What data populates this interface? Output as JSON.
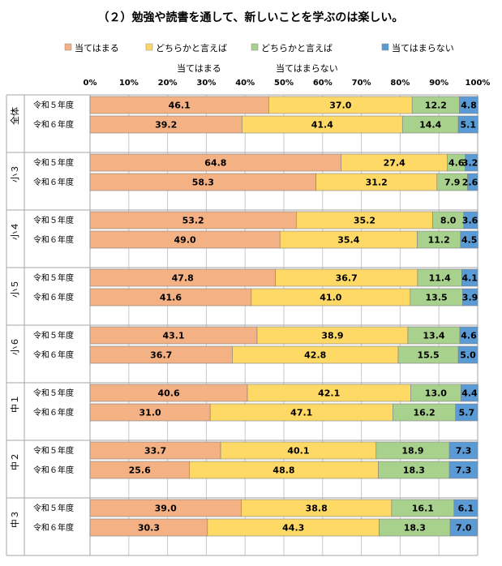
{
  "title": "（２）勉強や読書を通して、新しいことを学ぶのは楽しい。",
  "chart_data": {
    "type": "bar",
    "orientation": "horizontal",
    "stacked": "percent",
    "xlim": [
      0,
      100
    ],
    "x_ticks": [
      "0%",
      "10%",
      "20%",
      "30%",
      "40%",
      "50%",
      "60%",
      "70%",
      "80%",
      "90%",
      "100%"
    ],
    "grid": true,
    "legend_position": "top",
    "series": [
      {
        "name": "当てはまる",
        "color": "#F4B183"
      },
      {
        "name": "どちらかと言えば当てはまる",
        "color": "#FFD966"
      },
      {
        "name": "どちらかと言えば当てはまらない",
        "color": "#A9D18E"
      },
      {
        "name": "当てはまらない",
        "color": "#5B9BD5"
      }
    ],
    "groups": [
      {
        "name": "全体",
        "rows": [
          {
            "label": "令和５年度",
            "values": [
              46.1,
              37.0,
              12.2,
              4.8
            ]
          },
          {
            "label": "令和６年度",
            "values": [
              39.2,
              41.4,
              14.4,
              5.1
            ]
          }
        ]
      },
      {
        "name": "小３",
        "rows": [
          {
            "label": "令和５年度",
            "values": [
              64.8,
              27.4,
              4.6,
              3.2
            ]
          },
          {
            "label": "令和６年度",
            "values": [
              58.3,
              31.2,
              7.9,
              2.6
            ]
          }
        ]
      },
      {
        "name": "小４",
        "rows": [
          {
            "label": "令和５年度",
            "values": [
              53.2,
              35.2,
              8.0,
              3.6
            ]
          },
          {
            "label": "令和６年度",
            "values": [
              49.0,
              35.4,
              11.2,
              4.5
            ]
          }
        ]
      },
      {
        "name": "小５",
        "rows": [
          {
            "label": "令和５年度",
            "values": [
              47.8,
              36.7,
              11.4,
              4.1
            ]
          },
          {
            "label": "令和６年度",
            "values": [
              41.6,
              41.0,
              13.5,
              3.9
            ]
          }
        ]
      },
      {
        "name": "小６",
        "rows": [
          {
            "label": "令和５年度",
            "values": [
              43.1,
              38.9,
              13.4,
              4.6
            ]
          },
          {
            "label": "令和６年度",
            "values": [
              36.7,
              42.8,
              15.5,
              5.0
            ]
          }
        ]
      },
      {
        "name": "中１",
        "rows": [
          {
            "label": "令和５年度",
            "values": [
              40.6,
              42.1,
              13.0,
              4.4
            ]
          },
          {
            "label": "令和６年度",
            "values": [
              31.0,
              47.1,
              16.2,
              5.7
            ]
          }
        ]
      },
      {
        "name": "中２",
        "rows": [
          {
            "label": "令和５年度",
            "values": [
              33.7,
              40.1,
              18.9,
              7.3
            ]
          },
          {
            "label": "令和６年度",
            "values": [
              25.6,
              48.8,
              18.3,
              7.3
            ]
          }
        ]
      },
      {
        "name": "中３",
        "rows": [
          {
            "label": "令和５年度",
            "values": [
              39.0,
              38.8,
              16.1,
              6.1
            ]
          },
          {
            "label": "令和６年度",
            "values": [
              30.3,
              44.3,
              18.3,
              7.0
            ]
          }
        ]
      }
    ]
  }
}
